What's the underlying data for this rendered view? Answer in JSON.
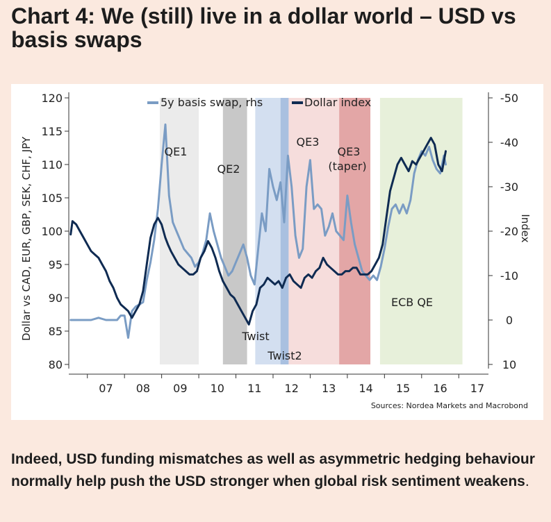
{
  "title": "Chart 4: We (still) live in a dollar world – USD vs basis swaps",
  "body_text": "Indeed, USD funding mismatches as well as asymmetric hedging behaviour normally help push the USD stronger when global risk sentiment weakens",
  "body_text_tail": ".",
  "chart_data": {
    "type": "line",
    "title": "Chart 4: We (still) live in a dollar world – USD vs basis swaps",
    "ylabel": "Dollar vs CAD, EUR, GBP, SEK, CHF, JPY",
    "y2label": "Index",
    "source": "Sources: Nordea Markets and Macrobond",
    "ylim": [
      80,
      120
    ],
    "yticks": [
      80,
      85,
      90,
      95,
      100,
      105,
      110,
      115,
      120
    ],
    "y2lim": [
      10,
      -50
    ],
    "y2ticks": [
      10,
      0,
      -10,
      -20,
      -30,
      -40,
      -50
    ],
    "y2ticklabels": [
      "10",
      "0",
      "-10",
      "-20",
      "-30",
      "-40",
      "-50"
    ],
    "xlim": [
      2006.5,
      2017.8
    ],
    "xticklabels": [
      "07",
      "08",
      "09",
      "10",
      "11",
      "12",
      "13",
      "14",
      "15",
      "16",
      "17"
    ],
    "legend": [
      "5y basis swap, rhs",
      "Dollar index"
    ],
    "series": [
      {
        "name": "Dollar index",
        "axis": "left",
        "color": "#0f2b52",
        "x": [
          2006.55,
          2006.6,
          2006.7,
          2006.8,
          2006.9,
          2007.0,
          2007.1,
          2007.2,
          2007.3,
          2007.4,
          2007.5,
          2007.6,
          2007.7,
          2007.8,
          2007.9,
          2008.0,
          2008.1,
          2008.2,
          2008.3,
          2008.4,
          2008.5,
          2008.6,
          2008.7,
          2008.8,
          2008.9,
          2009.0,
          2009.1,
          2009.17,
          2009.25,
          2009.35,
          2009.45,
          2009.55,
          2009.65,
          2009.75,
          2009.85,
          2009.95,
          2010.05,
          2010.15,
          2010.25,
          2010.35,
          2010.45,
          2010.55,
          2010.65,
          2010.75,
          2010.85,
          2010.95,
          2011.05,
          2011.15,
          2011.25,
          2011.35,
          2011.45,
          2011.55,
          2011.65,
          2011.75,
          2011.85,
          2011.95,
          2012.05,
          2012.15,
          2012.25,
          2012.35,
          2012.45,
          2012.55,
          2012.65,
          2012.75,
          2012.85,
          2012.95,
          2013.05,
          2013.15,
          2013.25,
          2013.35,
          2013.45,
          2013.55,
          2013.65,
          2013.75,
          2013.85,
          2013.95,
          2014.05,
          2014.15,
          2014.25,
          2014.35,
          2014.45,
          2014.55,
          2014.65,
          2014.75,
          2014.85,
          2014.95,
          2015.05,
          2015.15,
          2015.25,
          2015.35,
          2015.45,
          2015.55,
          2015.65,
          2015.75,
          2015.85,
          2015.95,
          2016.05,
          2016.15,
          2016.25,
          2016.35,
          2016.45,
          2016.55,
          2016.65
        ],
        "values": [
          99.5,
          101.5,
          101,
          100,
          99,
          98,
          97,
          96.5,
          96,
          95,
          94,
          92.5,
          91.5,
          90,
          89,
          88.5,
          88,
          87,
          88,
          89,
          91,
          95,
          99,
          101,
          102,
          101,
          99,
          98,
          97,
          96,
          95,
          94.5,
          94,
          93.5,
          93.5,
          94,
          96,
          97,
          98.5,
          97.5,
          96,
          94,
          92.5,
          91.5,
          90.5,
          90,
          89,
          88,
          87,
          86,
          88,
          89,
          91.5,
          92,
          93,
          92.5,
          92,
          92.5,
          91.5,
          93,
          93.5,
          92.5,
          92,
          91.5,
          93,
          93.5,
          93,
          94,
          94.5,
          96,
          95,
          94.5,
          94,
          93.5,
          93.5,
          94,
          94,
          94.5,
          94.5,
          93.5,
          93.5,
          93.5,
          94,
          95,
          96,
          98,
          102,
          106,
          108,
          110,
          111,
          110,
          109,
          110.5,
          110,
          111,
          112,
          113,
          114,
          113,
          110,
          109,
          112
        ]
      },
      {
        "name": "5y basis swap, rhs",
        "axis": "right",
        "color": "#7a9cc4",
        "x": [
          2006.55,
          2006.7,
          2006.9,
          2007.1,
          2007.3,
          2007.5,
          2007.7,
          2007.8,
          2007.9,
          2008.0,
          2008.1,
          2008.2,
          2008.3,
          2008.4,
          2008.5,
          2008.6,
          2008.7,
          2008.8,
          2008.9,
          2009.0,
          2009.1,
          2009.2,
          2009.3,
          2009.4,
          2009.5,
          2009.6,
          2009.7,
          2009.8,
          2009.9,
          2010.0,
          2010.1,
          2010.2,
          2010.3,
          2010.4,
          2010.5,
          2010.6,
          2010.7,
          2010.8,
          2010.9,
          2011.0,
          2011.1,
          2011.2,
          2011.3,
          2011.4,
          2011.5,
          2011.6,
          2011.7,
          2011.8,
          2011.9,
          2012.0,
          2012.1,
          2012.2,
          2012.3,
          2012.4,
          2012.5,
          2012.6,
          2012.7,
          2012.8,
          2012.9,
          2013.0,
          2013.1,
          2013.2,
          2013.3,
          2013.4,
          2013.5,
          2013.6,
          2013.7,
          2013.8,
          2013.9,
          2014.0,
          2014.1,
          2014.2,
          2014.3,
          2014.4,
          2014.5,
          2014.6,
          2014.7,
          2014.8,
          2014.9,
          2015.0,
          2015.1,
          2015.2,
          2015.3,
          2015.4,
          2015.5,
          2015.6,
          2015.7,
          2015.8,
          2015.9,
          2016.0,
          2016.1,
          2016.2,
          2016.3,
          2016.4,
          2016.5,
          2016.6,
          2016.65
        ],
        "values": [
          0,
          0,
          0,
          0,
          -0.5,
          0,
          0,
          0,
          -1,
          -1,
          4,
          -2,
          -3,
          -3.5,
          -4,
          -9,
          -13,
          -18,
          -25,
          -35,
          -44,
          -28,
          -22,
          -20,
          -18,
          -16,
          -15,
          -14,
          -12,
          -13,
          -15,
          -18,
          -24,
          -20,
          -17,
          -14,
          -12,
          -10,
          -11,
          -13,
          -15,
          -17,
          -14,
          -10,
          -8,
          -16,
          -24,
          -20,
          -34,
          -30,
          -27,
          -31,
          -22,
          -37,
          -30,
          -19,
          -14,
          -16,
          -30,
          -36,
          -25,
          -26,
          -25,
          -19,
          -21,
          -24,
          -20,
          -19,
          -18,
          -28,
          -22,
          -17,
          -14,
          -11,
          -10,
          -9,
          -10,
          -9,
          -12,
          -16,
          -21,
          -25,
          -26,
          -24,
          -26,
          -24,
          -27,
          -33,
          -36,
          -38,
          -37,
          -39,
          -36,
          -34,
          -33,
          -37,
          -35
        ]
      }
    ],
    "annotations": [
      "QE1",
      "QE2",
      "QE3",
      "QE3",
      "(taper)",
      "Twist",
      "Twist2",
      "ECB QE"
    ],
    "shaded_periods": [
      {
        "label": "QE1",
        "start": 2008.95,
        "end": 2010.0,
        "color": "#ebebeb"
      },
      {
        "label": "QE2",
        "start": 2010.65,
        "end": 2011.3,
        "color": "#c8c8c8"
      },
      {
        "label": "Twist",
        "start": 2011.52,
        "end": 2012.2,
        "color": "#d3dff0"
      },
      {
        "label": "Twist2",
        "start": 2012.2,
        "end": 2012.42,
        "color": "#a9c0e0"
      },
      {
        "label": "QE3",
        "start": 2012.42,
        "end": 2013.78,
        "color": "#f6dddc"
      },
      {
        "label": "QE3 (taper)",
        "start": 2013.78,
        "end": 2014.62,
        "color": "#e3a6a6"
      },
      {
        "label": "ECB QE",
        "start": 2014.88,
        "end": 2017.1,
        "color": "#e7f0da"
      }
    ]
  }
}
